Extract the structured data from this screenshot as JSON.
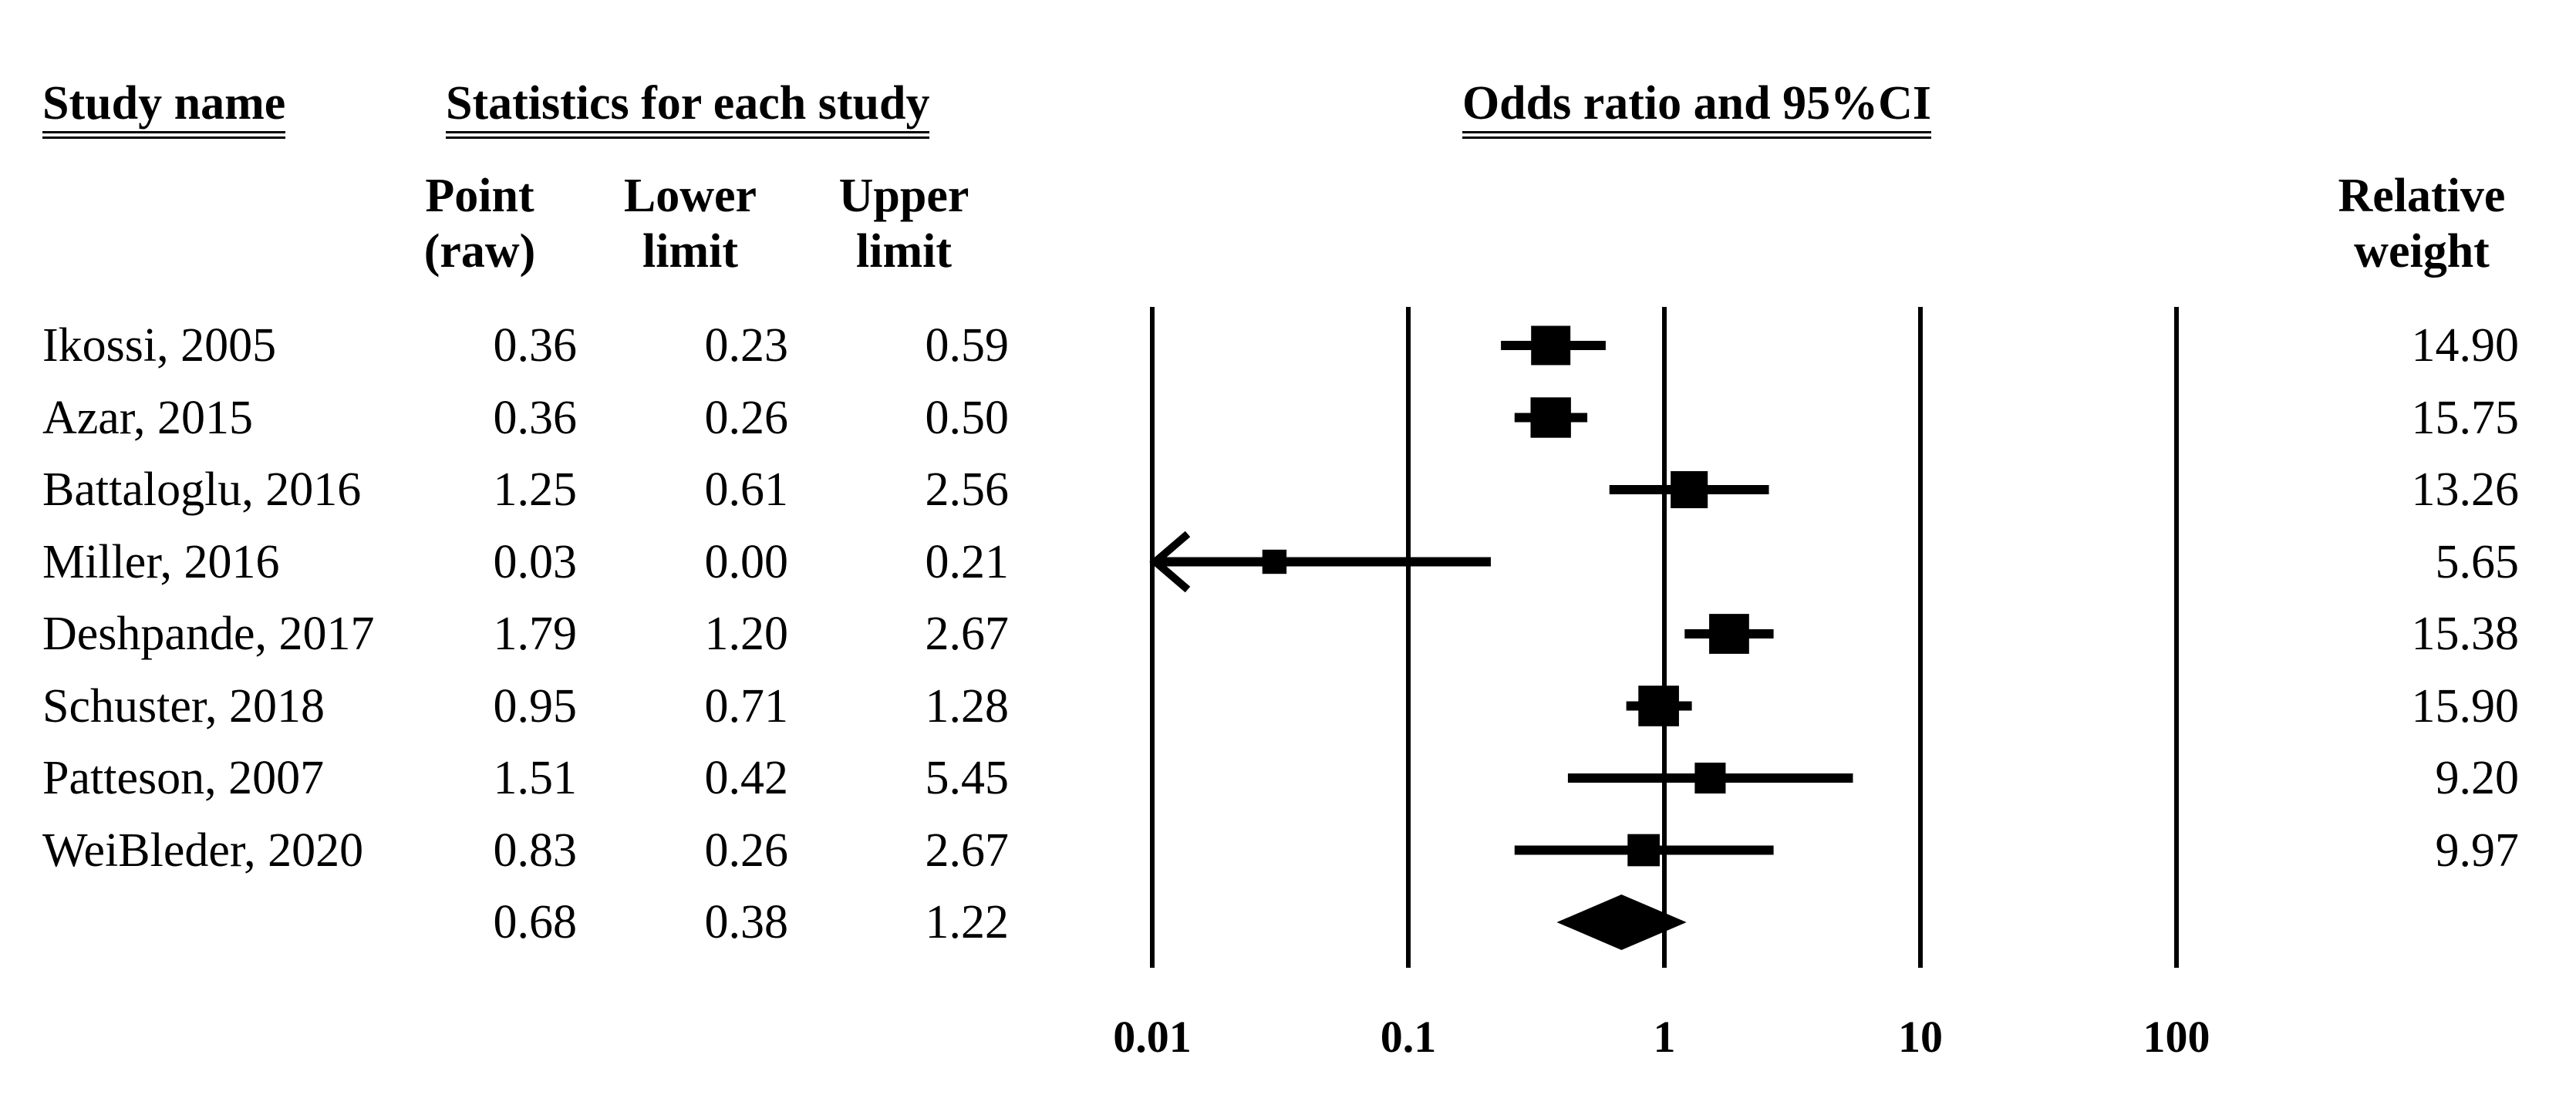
{
  "figure": {
    "plot_title": "Odds ratio and 95%CI",
    "columns": {
      "study_name": "Study name",
      "statistics_group": "Statistics for each study",
      "point_line1": "Point",
      "point_line2": "(raw)",
      "lower_line1": "Lower",
      "lower_line2": "limit",
      "upper_line1": "Upper",
      "upper_line2": "limit",
      "relative_line1": "Relative",
      "relative_line2": "weight"
    }
  },
  "chart_data": {
    "type": "forest",
    "effect_measure": "Odds ratio",
    "x_axis": {
      "scale": "log",
      "min": 0.01,
      "max": 100,
      "ticks": [
        0.01,
        0.1,
        1,
        10,
        100
      ],
      "tick_labels": [
        "0.01",
        "0.1",
        "1",
        "10",
        "100"
      ]
    },
    "studies": [
      {
        "name": "Ikossi, 2005",
        "point": 0.36,
        "lower": 0.23,
        "upper": 0.59,
        "weight": 14.9,
        "point_text": "0.36",
        "lower_text": "0.23",
        "upper_text": "0.59",
        "weight_text": "14.90"
      },
      {
        "name": "Azar, 2015",
        "point": 0.36,
        "lower": 0.26,
        "upper": 0.5,
        "weight": 15.75,
        "point_text": "0.36",
        "lower_text": "0.26",
        "upper_text": "0.50",
        "weight_text": "15.75"
      },
      {
        "name": "Battaloglu, 2016",
        "point": 1.25,
        "lower": 0.61,
        "upper": 2.56,
        "weight": 13.26,
        "point_text": "1.25",
        "lower_text": "0.61",
        "upper_text": "2.56",
        "weight_text": "13.26"
      },
      {
        "name": "Miller, 2016",
        "point": 0.03,
        "lower": 0.0,
        "upper": 0.21,
        "weight": 5.65,
        "point_text": "0.03",
        "lower_text": "0.00",
        "upper_text": "0.21",
        "weight_text": "5.65",
        "arrow_left": true
      },
      {
        "name": "Deshpande, 2017",
        "point": 1.79,
        "lower": 1.2,
        "upper": 2.67,
        "weight": 15.38,
        "point_text": "1.79",
        "lower_text": "1.20",
        "upper_text": "2.67",
        "weight_text": "15.38"
      },
      {
        "name": "Schuster, 2018",
        "point": 0.95,
        "lower": 0.71,
        "upper": 1.28,
        "weight": 15.9,
        "point_text": "0.95",
        "lower_text": "0.71",
        "upper_text": "1.28",
        "weight_text": "15.90"
      },
      {
        "name": "Patteson, 2007",
        "point": 1.51,
        "lower": 0.42,
        "upper": 5.45,
        "weight": 9.2,
        "point_text": "1.51",
        "lower_text": "0.42",
        "upper_text": "5.45",
        "weight_text": "9.20"
      },
      {
        "name": "WeiBleder, 2020",
        "point": 0.83,
        "lower": 0.26,
        "upper": 2.67,
        "weight": 9.97,
        "point_text": "0.83",
        "lower_text": "0.26",
        "upper_text": "2.67",
        "weight_text": "9.97"
      }
    ],
    "overall": {
      "point": 0.68,
      "lower": 0.38,
      "upper": 1.22,
      "point_text": "0.68",
      "lower_text": "0.38",
      "upper_text": "1.22"
    }
  }
}
